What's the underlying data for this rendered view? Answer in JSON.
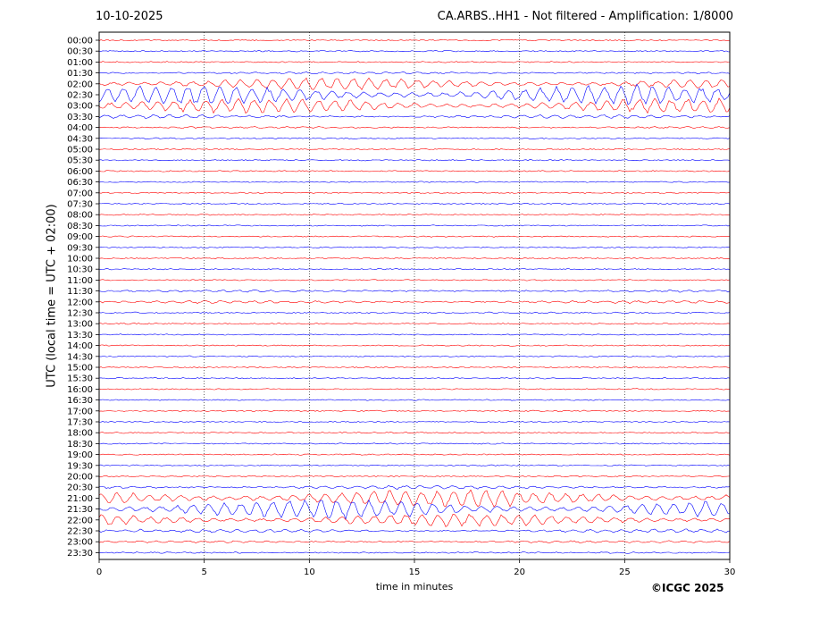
{
  "header": {
    "date": "10-10-2025",
    "title": "CA.ARBS..HH1 - Not filtered - Amplification: 1/8000"
  },
  "footer": {
    "copyright": "©ICGC 2025"
  },
  "chart_data": {
    "type": "line",
    "title": "CA.ARBS..HH1 - Not filtered - Amplification: 1/8000",
    "xlabel": "time in minutes",
    "ylabel": "UTC (local time = UTC + 02:00)",
    "xlim": [
      0,
      30
    ],
    "xticks": [
      0,
      5,
      10,
      15,
      20,
      25,
      30
    ],
    "grid": "vertical dotted lines at 5, 10, 15, 20, 25 minutes",
    "colors": {
      "odd_rows": "#ff0000",
      "even_rows": "#0000ff",
      "grid": "#000000"
    },
    "rows": [
      {
        "label": "00:00",
        "activity": 0.02
      },
      {
        "label": "00:30",
        "activity": 0.02
      },
      {
        "label": "01:00",
        "activity": 0.03
      },
      {
        "label": "01:30",
        "activity": 0.08
      },
      {
        "label": "02:00",
        "activity": 0.55
      },
      {
        "label": "02:30",
        "activity": 0.9
      },
      {
        "label": "03:00",
        "activity": 0.7
      },
      {
        "label": "03:30",
        "activity": 0.15
      },
      {
        "label": "04:00",
        "activity": 0.06
      },
      {
        "label": "04:30",
        "activity": 0.03
      },
      {
        "label": "05:00",
        "activity": 0.02
      },
      {
        "label": "05:30",
        "activity": 0.02
      },
      {
        "label": "06:00",
        "activity": 0.02
      },
      {
        "label": "06:30",
        "activity": 0.02
      },
      {
        "label": "07:00",
        "activity": 0.02
      },
      {
        "label": "07:30",
        "activity": 0.02
      },
      {
        "label": "08:00",
        "activity": 0.02
      },
      {
        "label": "08:30",
        "activity": 0.02
      },
      {
        "label": "09:00",
        "activity": 0.02
      },
      {
        "label": "09:30",
        "activity": 0.02
      },
      {
        "label": "10:00",
        "activity": 0.02
      },
      {
        "label": "10:30",
        "activity": 0.02
      },
      {
        "label": "11:00",
        "activity": 0.02
      },
      {
        "label": "11:30",
        "activity": 0.08
      },
      {
        "label": "12:00",
        "activity": 0.12
      },
      {
        "label": "12:30",
        "activity": 0.04
      },
      {
        "label": "13:00",
        "activity": 0.02
      },
      {
        "label": "13:30",
        "activity": 0.02
      },
      {
        "label": "14:00",
        "activity": 0.02
      },
      {
        "label": "14:30",
        "activity": 0.02
      },
      {
        "label": "15:00",
        "activity": 0.02
      },
      {
        "label": "15:30",
        "activity": 0.02
      },
      {
        "label": "16:00",
        "activity": 0.02
      },
      {
        "label": "16:30",
        "activity": 0.02
      },
      {
        "label": "17:00",
        "activity": 0.02
      },
      {
        "label": "17:30",
        "activity": 0.02
      },
      {
        "label": "18:00",
        "activity": 0.02
      },
      {
        "label": "18:30",
        "activity": 0.02
      },
      {
        "label": "19:00",
        "activity": 0.02
      },
      {
        "label": "19:30",
        "activity": 0.02
      },
      {
        "label": "20:00",
        "activity": 0.04
      },
      {
        "label": "20:30",
        "activity": 0.15
      },
      {
        "label": "21:00",
        "activity": 0.85
      },
      {
        "label": "21:30",
        "activity": 0.9
      },
      {
        "label": "22:00",
        "activity": 0.6
      },
      {
        "label": "22:30",
        "activity": 0.15
      },
      {
        "label": "23:00",
        "activity": 0.08
      },
      {
        "label": "23:30",
        "activity": 0.04
      }
    ]
  }
}
